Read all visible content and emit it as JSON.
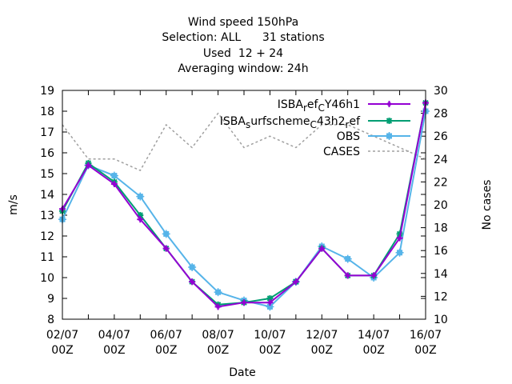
{
  "chart_data": {
    "type": "line",
    "title_lines": [
      "Wind speed 150hPa",
      "Selection: ALL      31 stations",
      "Used  12 + 24",
      "Averaging window: 24h"
    ],
    "xlabel": "Date",
    "ylabel": "m/s",
    "y2label": "No cases",
    "x_dates": [
      "2023-07-02 00Z",
      "2023-07-03 00Z",
      "2023-07-04 00Z",
      "2023-07-05 00Z",
      "2023-07-06 00Z",
      "2023-07-07 00Z",
      "2023-07-08 00Z",
      "2023-07-09 00Z",
      "2023-07-10 00Z",
      "2023-07-11 00Z",
      "2023-07-12 00Z",
      "2023-07-13 00Z",
      "2023-07-14 00Z",
      "2023-07-15 00Z",
      "2023-07-16 00Z"
    ],
    "x_ticks": [
      {
        "line1": "02/07",
        "line2": "00Z"
      },
      {
        "line1": "04/07",
        "line2": "00Z"
      },
      {
        "line1": "06/07",
        "line2": "00Z"
      },
      {
        "line1": "08/07",
        "line2": "00Z"
      },
      {
        "line1": "10/07",
        "line2": "00Z"
      },
      {
        "line1": "12/07",
        "line2": "00Z"
      },
      {
        "line1": "14/07",
        "line2": "00Z"
      },
      {
        "line1": "16/07",
        "line2": "00Z"
      }
    ],
    "ylim": [
      8,
      19
    ],
    "yticks": [
      8,
      9,
      10,
      11,
      12,
      13,
      14,
      15,
      16,
      17,
      18,
      19
    ],
    "y2lim": [
      10,
      30
    ],
    "y2ticks": [
      10,
      12,
      14,
      16,
      18,
      20,
      22,
      24,
      26,
      28,
      30
    ],
    "grid": false,
    "legend_position": "top-right",
    "series": [
      {
        "name": "ISBA_ref_CY46h1",
        "legend_parts": [
          "ISBA",
          "r",
          "ef",
          "C",
          "Y46h1"
        ],
        "color": "#9400d3",
        "marker": "plus",
        "axis": "y",
        "values": [
          13.3,
          15.4,
          14.5,
          12.8,
          11.4,
          9.8,
          8.6,
          8.8,
          8.8,
          9.8,
          11.4,
          10.1,
          10.1,
          11.9,
          18.4
        ]
      },
      {
        "name": "ISBA_surfscheme_C43h2_ref",
        "legend_parts": [
          "ISBA",
          "s",
          "urfscheme",
          "C",
          "43h2",
          "r",
          "ef"
        ],
        "color": "#009e73",
        "marker": "star",
        "axis": "y",
        "values": [
          13.2,
          15.5,
          14.6,
          13.0,
          11.4,
          9.8,
          8.7,
          8.8,
          9.0,
          9.8,
          11.4,
          10.1,
          10.1,
          12.1,
          18.4
        ]
      },
      {
        "name": "OBS",
        "color": "#56b4e9",
        "marker": "box",
        "axis": "y",
        "values": [
          12.8,
          15.4,
          14.9,
          13.9,
          12.1,
          10.5,
          9.3,
          8.9,
          8.6,
          9.8,
          11.5,
          10.9,
          10.0,
          11.2,
          18.0
        ]
      },
      {
        "name": "CASES",
        "color": "#a0a0a0",
        "marker": "none",
        "dashed": true,
        "axis": "y2",
        "values": [
          27,
          24,
          24,
          23,
          27,
          25,
          28,
          25,
          26,
          25,
          27,
          27,
          26,
          25,
          24
        ]
      }
    ]
  }
}
